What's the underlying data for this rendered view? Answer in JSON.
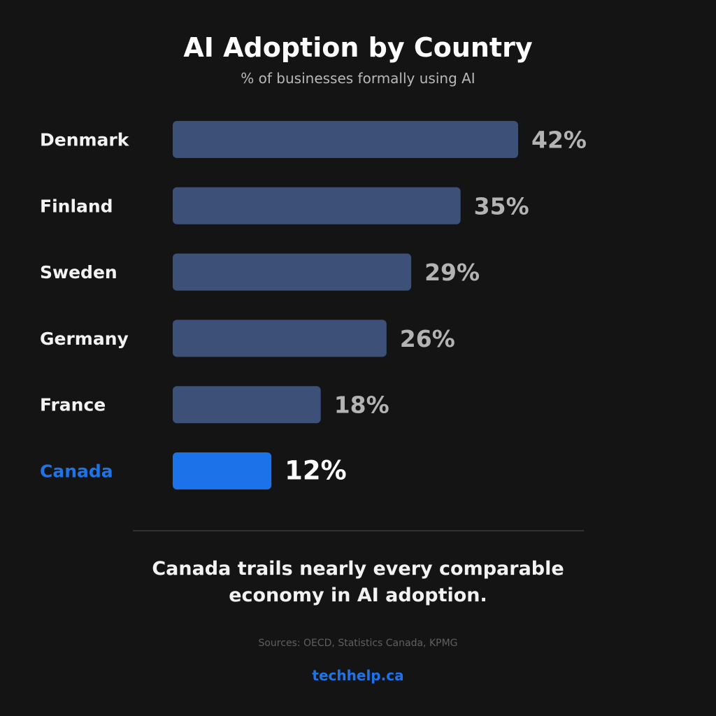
{
  "colors": {
    "background": "#141414",
    "bar": "#3d5078",
    "highlight_bar": "#1c72e8",
    "label": "#f2f2f2",
    "highlight_label": "#1f73e8",
    "value": "#b3b3b3",
    "highlight_value": "#ffffff"
  },
  "chart_data": {
    "type": "bar",
    "orientation": "horizontal",
    "title": "AI Adoption by Country",
    "subtitle": "% of businesses formally using AI",
    "categories": [
      "Denmark",
      "Finland",
      "Sweden",
      "Germany",
      "France",
      "Canada"
    ],
    "values": [
      42,
      35,
      29,
      26,
      18,
      12
    ],
    "value_labels": [
      "42%",
      "35%",
      "29%",
      "26%",
      "18%",
      "12%"
    ],
    "highlight": "Canada",
    "unit": "%",
    "grid": false,
    "legend": "none"
  },
  "footer": {
    "takeaway_line1": "Canada trails nearly every comparable",
    "takeaway_line2": "economy in AI adoption.",
    "sources": "Sources: OECD, Statistics Canada, KPMG",
    "brand": "techhelp.ca"
  }
}
